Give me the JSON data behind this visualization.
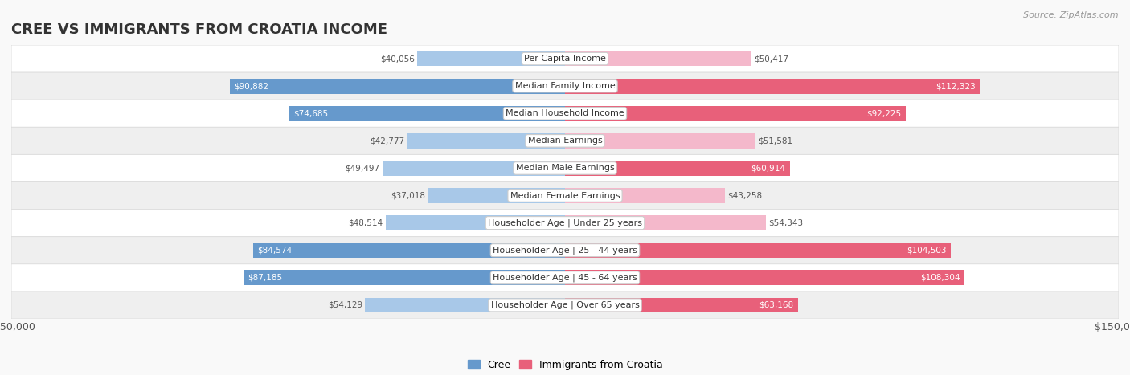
{
  "title": "CREE VS IMMIGRANTS FROM CROATIA INCOME",
  "source": "Source: ZipAtlas.com",
  "categories": [
    "Per Capita Income",
    "Median Family Income",
    "Median Household Income",
    "Median Earnings",
    "Median Male Earnings",
    "Median Female Earnings",
    "Householder Age | Under 25 years",
    "Householder Age | 25 - 44 years",
    "Householder Age | 45 - 64 years",
    "Householder Age | Over 65 years"
  ],
  "cree_values": [
    40056,
    90882,
    74685,
    42777,
    49497,
    37018,
    48514,
    84574,
    87185,
    54129
  ],
  "croatia_values": [
    50417,
    112323,
    92225,
    51581,
    60914,
    43258,
    54343,
    104503,
    108304,
    63168
  ],
  "cree_labels": [
    "$40,056",
    "$90,882",
    "$74,685",
    "$42,777",
    "$49,497",
    "$37,018",
    "$48,514",
    "$84,574",
    "$87,185",
    "$54,129"
  ],
  "croatia_labels": [
    "$50,417",
    "$112,323",
    "$92,225",
    "$51,581",
    "$60,914",
    "$43,258",
    "$54,343",
    "$104,503",
    "$108,304",
    "$63,168"
  ],
  "cree_color_light": "#a8c8e8",
  "cree_color_dark": "#6699cc",
  "croatia_color_light": "#f4b8cb",
  "croatia_color_dark": "#e8607a",
  "cree_colors": [
    "#a8c8e8",
    "#6699cc",
    "#7ab0d4",
    "#a8c8e8",
    "#a8c8e8",
    "#a8c8e8",
    "#a8c8e8",
    "#6699cc",
    "#6699cc",
    "#a8c8e8"
  ],
  "croatia_colors": [
    "#f4b8cb",
    "#e8607a",
    "#e8607a",
    "#f4b8cb",
    "#f4b8cb",
    "#f4b8cb",
    "#f4b8cb",
    "#e8607a",
    "#e8607a",
    "#f4b8cb"
  ],
  "max_value": 150000,
  "bar_height": 0.55,
  "background_color": "#f9f9f9",
  "legend_cree": "Cree",
  "legend_croatia": "Immigrants from Croatia",
  "label_inside_threshold": 60000
}
